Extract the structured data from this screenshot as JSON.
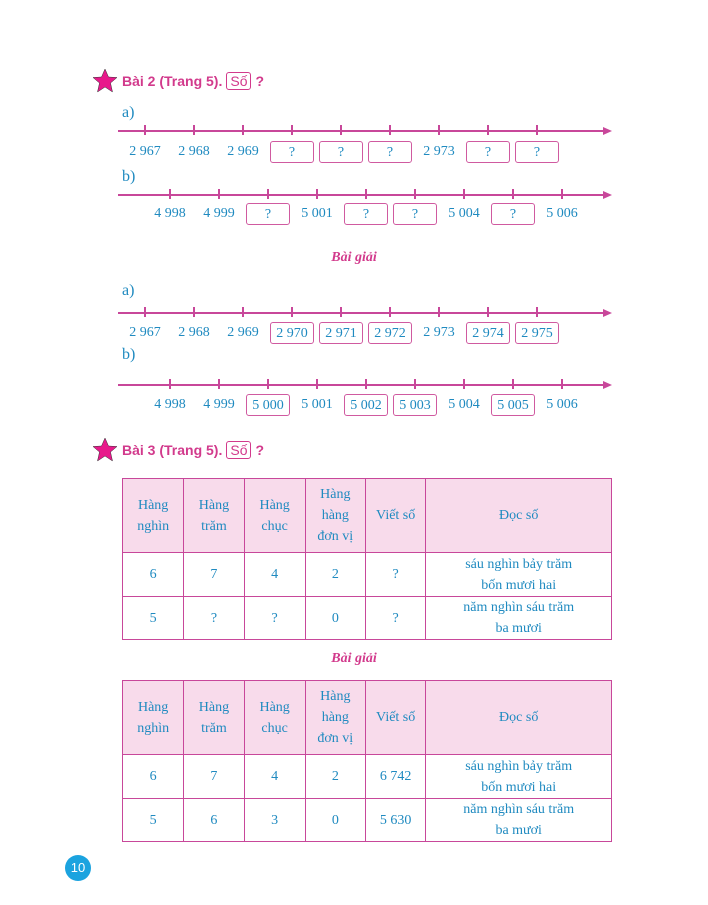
{
  "exercise2": {
    "title": "Bài 2 (Trang 5).",
    "so_box": "Số",
    "question_mark": "?",
    "part_a_label": "a)",
    "part_b_label": "b)",
    "line_a": [
      {
        "t": "2 967"
      },
      {
        "t": "2 968"
      },
      {
        "t": "2 969"
      },
      {
        "t": "?",
        "box": true
      },
      {
        "t": "?",
        "box": true
      },
      {
        "t": "?",
        "box": true
      },
      {
        "t": "2 973"
      },
      {
        "t": "?",
        "box": true
      },
      {
        "t": "?",
        "box": true
      }
    ],
    "line_b": [
      {
        "t": "4 998"
      },
      {
        "t": "4 999"
      },
      {
        "t": "?",
        "box": true
      },
      {
        "t": "5 001"
      },
      {
        "t": "?",
        "box": true
      },
      {
        "t": "?",
        "box": true
      },
      {
        "t": "5 004"
      },
      {
        "t": "?",
        "box": true
      },
      {
        "t": "5 006"
      }
    ],
    "solution_title": "Bài giải",
    "sol_a_label": "a)",
    "sol_b_label": "b)",
    "sol_line_a": [
      {
        "t": "2 967"
      },
      {
        "t": "2 968"
      },
      {
        "t": "2 969"
      },
      {
        "t": "2 970",
        "box": true
      },
      {
        "t": "2 971",
        "box": true
      },
      {
        "t": "2 972",
        "box": true
      },
      {
        "t": "2 973"
      },
      {
        "t": "2 974",
        "box": true
      },
      {
        "t": "2 975",
        "box": true
      }
    ],
    "sol_line_b": [
      {
        "t": "4 998"
      },
      {
        "t": "4 999"
      },
      {
        "t": "5 000",
        "box": true
      },
      {
        "t": "5 001"
      },
      {
        "t": "5 002",
        "box": true
      },
      {
        "t": "5 003",
        "box": true
      },
      {
        "t": "5 004"
      },
      {
        "t": "5 005",
        "box": true
      },
      {
        "t": "5 006"
      }
    ]
  },
  "exercise3": {
    "title": "Bài 3 (Trang 5).",
    "so_box": "Số",
    "question_mark": "?",
    "headers": [
      "Hàng\nnghìn",
      "Hàng\ntrăm",
      "Hàng\nchục",
      "Hàng\nhàng\nđơn vị",
      "Viết số",
      "Đọc số"
    ],
    "rows": [
      [
        "6",
        "7",
        "4",
        "2",
        "?",
        "sáu nghìn bảy trăm\nbốn mươi hai"
      ],
      [
        "5",
        "?",
        "?",
        "0",
        "?",
        "năm nghìn sáu trăm\nba mươi"
      ]
    ],
    "solution_title": "Bài giải",
    "solution_rows": [
      [
        "6",
        "7",
        "4",
        "2",
        "6 742",
        "sáu nghìn bảy trăm\nbốn mươi hai"
      ],
      [
        "5",
        "6",
        "3",
        "0",
        "5 630",
        "năm nghìn sáu trăm\nba mươi"
      ]
    ]
  },
  "page_number": "10",
  "colors": {
    "accent": "#d23a8c",
    "text": "#1f8ac0",
    "header_bg": "#f8dbeb",
    "page_badge": "#1ba3df"
  }
}
